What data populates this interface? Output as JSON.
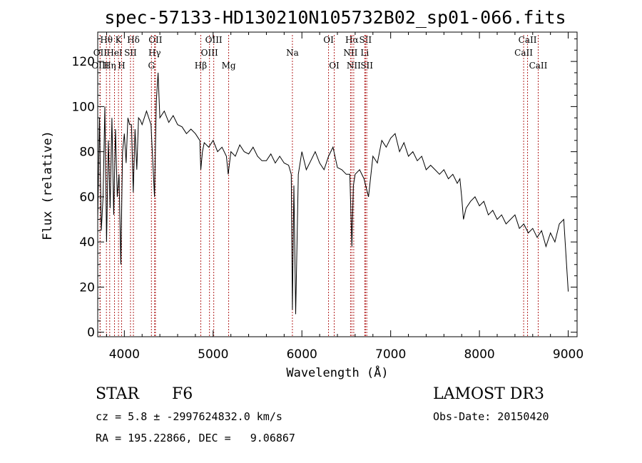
{
  "chart_data": {
    "type": "line",
    "title": "spec-57133-HD130210N105732B02_sp01-066.fits",
    "xlabel": "Wavelength (Å)",
    "ylabel": "Flux (relative)",
    "xlim": [
      3700,
      9100
    ],
    "ylim": [
      -2,
      133
    ],
    "x_ticks": [
      4000,
      5000,
      6000,
      7000,
      8000,
      9000
    ],
    "y_ticks": [
      0,
      20,
      40,
      60,
      80,
      100,
      120
    ],
    "grid": false,
    "series": [
      {
        "x": [
          3700,
          3720,
          3740,
          3760,
          3780,
          3800,
          3820,
          3840,
          3860,
          3880,
          3900,
          3920,
          3940,
          3960,
          3980,
          4000,
          4020,
          4040,
          4060,
          4080,
          4100,
          4120,
          4140,
          4160,
          4180,
          4200,
          4250,
          4300,
          4340,
          4360,
          4380,
          4400,
          4450,
          4500,
          4550,
          4600,
          4650,
          4700,
          4750,
          4800,
          4850,
          4861,
          4880,
          4900,
          4950,
          5000,
          5050,
          5100,
          5150,
          5170,
          5200,
          5250,
          5300,
          5350,
          5400,
          5450,
          5500,
          5550,
          5600,
          5650,
          5700,
          5750,
          5800,
          5850,
          5880,
          5893,
          5910,
          5930,
          5960,
          6000,
          6050,
          6100,
          6150,
          6200,
          6250,
          6300,
          6350,
          6400,
          6450,
          6500,
          6540,
          6563,
          6580,
          6600,
          6650,
          6700,
          6750,
          6800,
          6850,
          6900,
          6950,
          7000,
          7050,
          7100,
          7150,
          7200,
          7250,
          7300,
          7350,
          7400,
          7450,
          7500,
          7550,
          7600,
          7650,
          7700,
          7750,
          7780,
          7800,
          7820,
          7850,
          7900,
          7950,
          8000,
          8050,
          8100,
          8150,
          8200,
          8250,
          8300,
          8350,
          8400,
          8450,
          8500,
          8550,
          8600,
          8650,
          8700,
          8750,
          8800,
          8850,
          8900,
          8950,
          9000
        ],
        "y": [
          50,
          95,
          45,
          60,
          100,
          40,
          85,
          55,
          95,
          52,
          90,
          60,
          70,
          30,
          80,
          88,
          75,
          95,
          92,
          92,
          62,
          90,
          72,
          95,
          94,
          92,
          98,
          92,
          60,
          102,
          115,
          95,
          98,
          93,
          96,
          92,
          91,
          88,
          90,
          88,
          85,
          72,
          80,
          84,
          82,
          85,
          80,
          82,
          78,
          70,
          80,
          78,
          83,
          80,
          79,
          82,
          78,
          76,
          76,
          79,
          75,
          78,
          75,
          74,
          70,
          10,
          65,
          8,
          70,
          80,
          72,
          76,
          80,
          75,
          72,
          78,
          82,
          73,
          72,
          70,
          70,
          38,
          65,
          70,
          72,
          68,
          60,
          78,
          75,
          85,
          82,
          86,
          88,
          80,
          84,
          78,
          80,
          76,
          78,
          72,
          74,
          72,
          70,
          72,
          68,
          70,
          66,
          68,
          60,
          50,
          55,
          58,
          60,
          56,
          58,
          52,
          54,
          50,
          52,
          48,
          50,
          52,
          46,
          48,
          44,
          46,
          42,
          45,
          38,
          44,
          40,
          48,
          50,
          18
        ]
      }
    ],
    "line_markers": [
      {
        "label": "Hθ",
        "x": 3798,
        "row": 1
      },
      {
        "label": "OII",
        "x": 3727,
        "row": 2
      },
      {
        "label": "OIII",
        "x": 3727,
        "row": 3
      },
      {
        "label": "K",
        "x": 3934,
        "row": 1
      },
      {
        "label": "HeI",
        "x": 3889,
        "row": 2
      },
      {
        "label": "Hη",
        "x": 3835,
        "row": 3
      },
      {
        "label": "SII",
        "x": 4069,
        "row": 2
      },
      {
        "label": "H",
        "x": 3969,
        "row": 3
      },
      {
        "label": "Hδ",
        "x": 4102,
        "row": 1
      },
      {
        "label": "OII",
        "x": 4350,
        "row": 1
      },
      {
        "label": "Hγ",
        "x": 4341,
        "row": 2
      },
      {
        "label": "G",
        "x": 4305,
        "row": 3
      },
      {
        "label": "OIII",
        "x": 5007,
        "row": 1
      },
      {
        "label": "OIII",
        "x": 4959,
        "row": 2
      },
      {
        "label": "Hβ",
        "x": 4861,
        "row": 3
      },
      {
        "label": "Mg",
        "x": 5175,
        "row": 3
      },
      {
        "label": "Na",
        "x": 5893,
        "row": 2
      },
      {
        "label": "OI",
        "x": 6300,
        "row": 1
      },
      {
        "label": "OI",
        "x": 6364,
        "row": 3
      },
      {
        "label": "Hα",
        "x": 6563,
        "row": 1
      },
      {
        "label": "SII",
        "x": 6716,
        "row": 1
      },
      {
        "label": "NII",
        "x": 6548,
        "row": 2
      },
      {
        "label": "Li",
        "x": 6708,
        "row": 2
      },
      {
        "label": "NII",
        "x": 6584,
        "row": 3
      },
      {
        "label": "SII",
        "x": 6731,
        "row": 3
      },
      {
        "label": "CaII",
        "x": 8542,
        "row": 1
      },
      {
        "label": "CaII",
        "x": 8498,
        "row": 2
      },
      {
        "label": "CaII",
        "x": 8662,
        "row": 3
      }
    ]
  },
  "info": {
    "class": "STAR",
    "subclass": "F6",
    "survey": "LAMOST DR3",
    "cz": "cz = 5.8 ± -2997624832.0 km/s",
    "obs_date": "Obs-Date: 20150420",
    "radec": "RA = 195.22866, DEC =   9.06867"
  }
}
